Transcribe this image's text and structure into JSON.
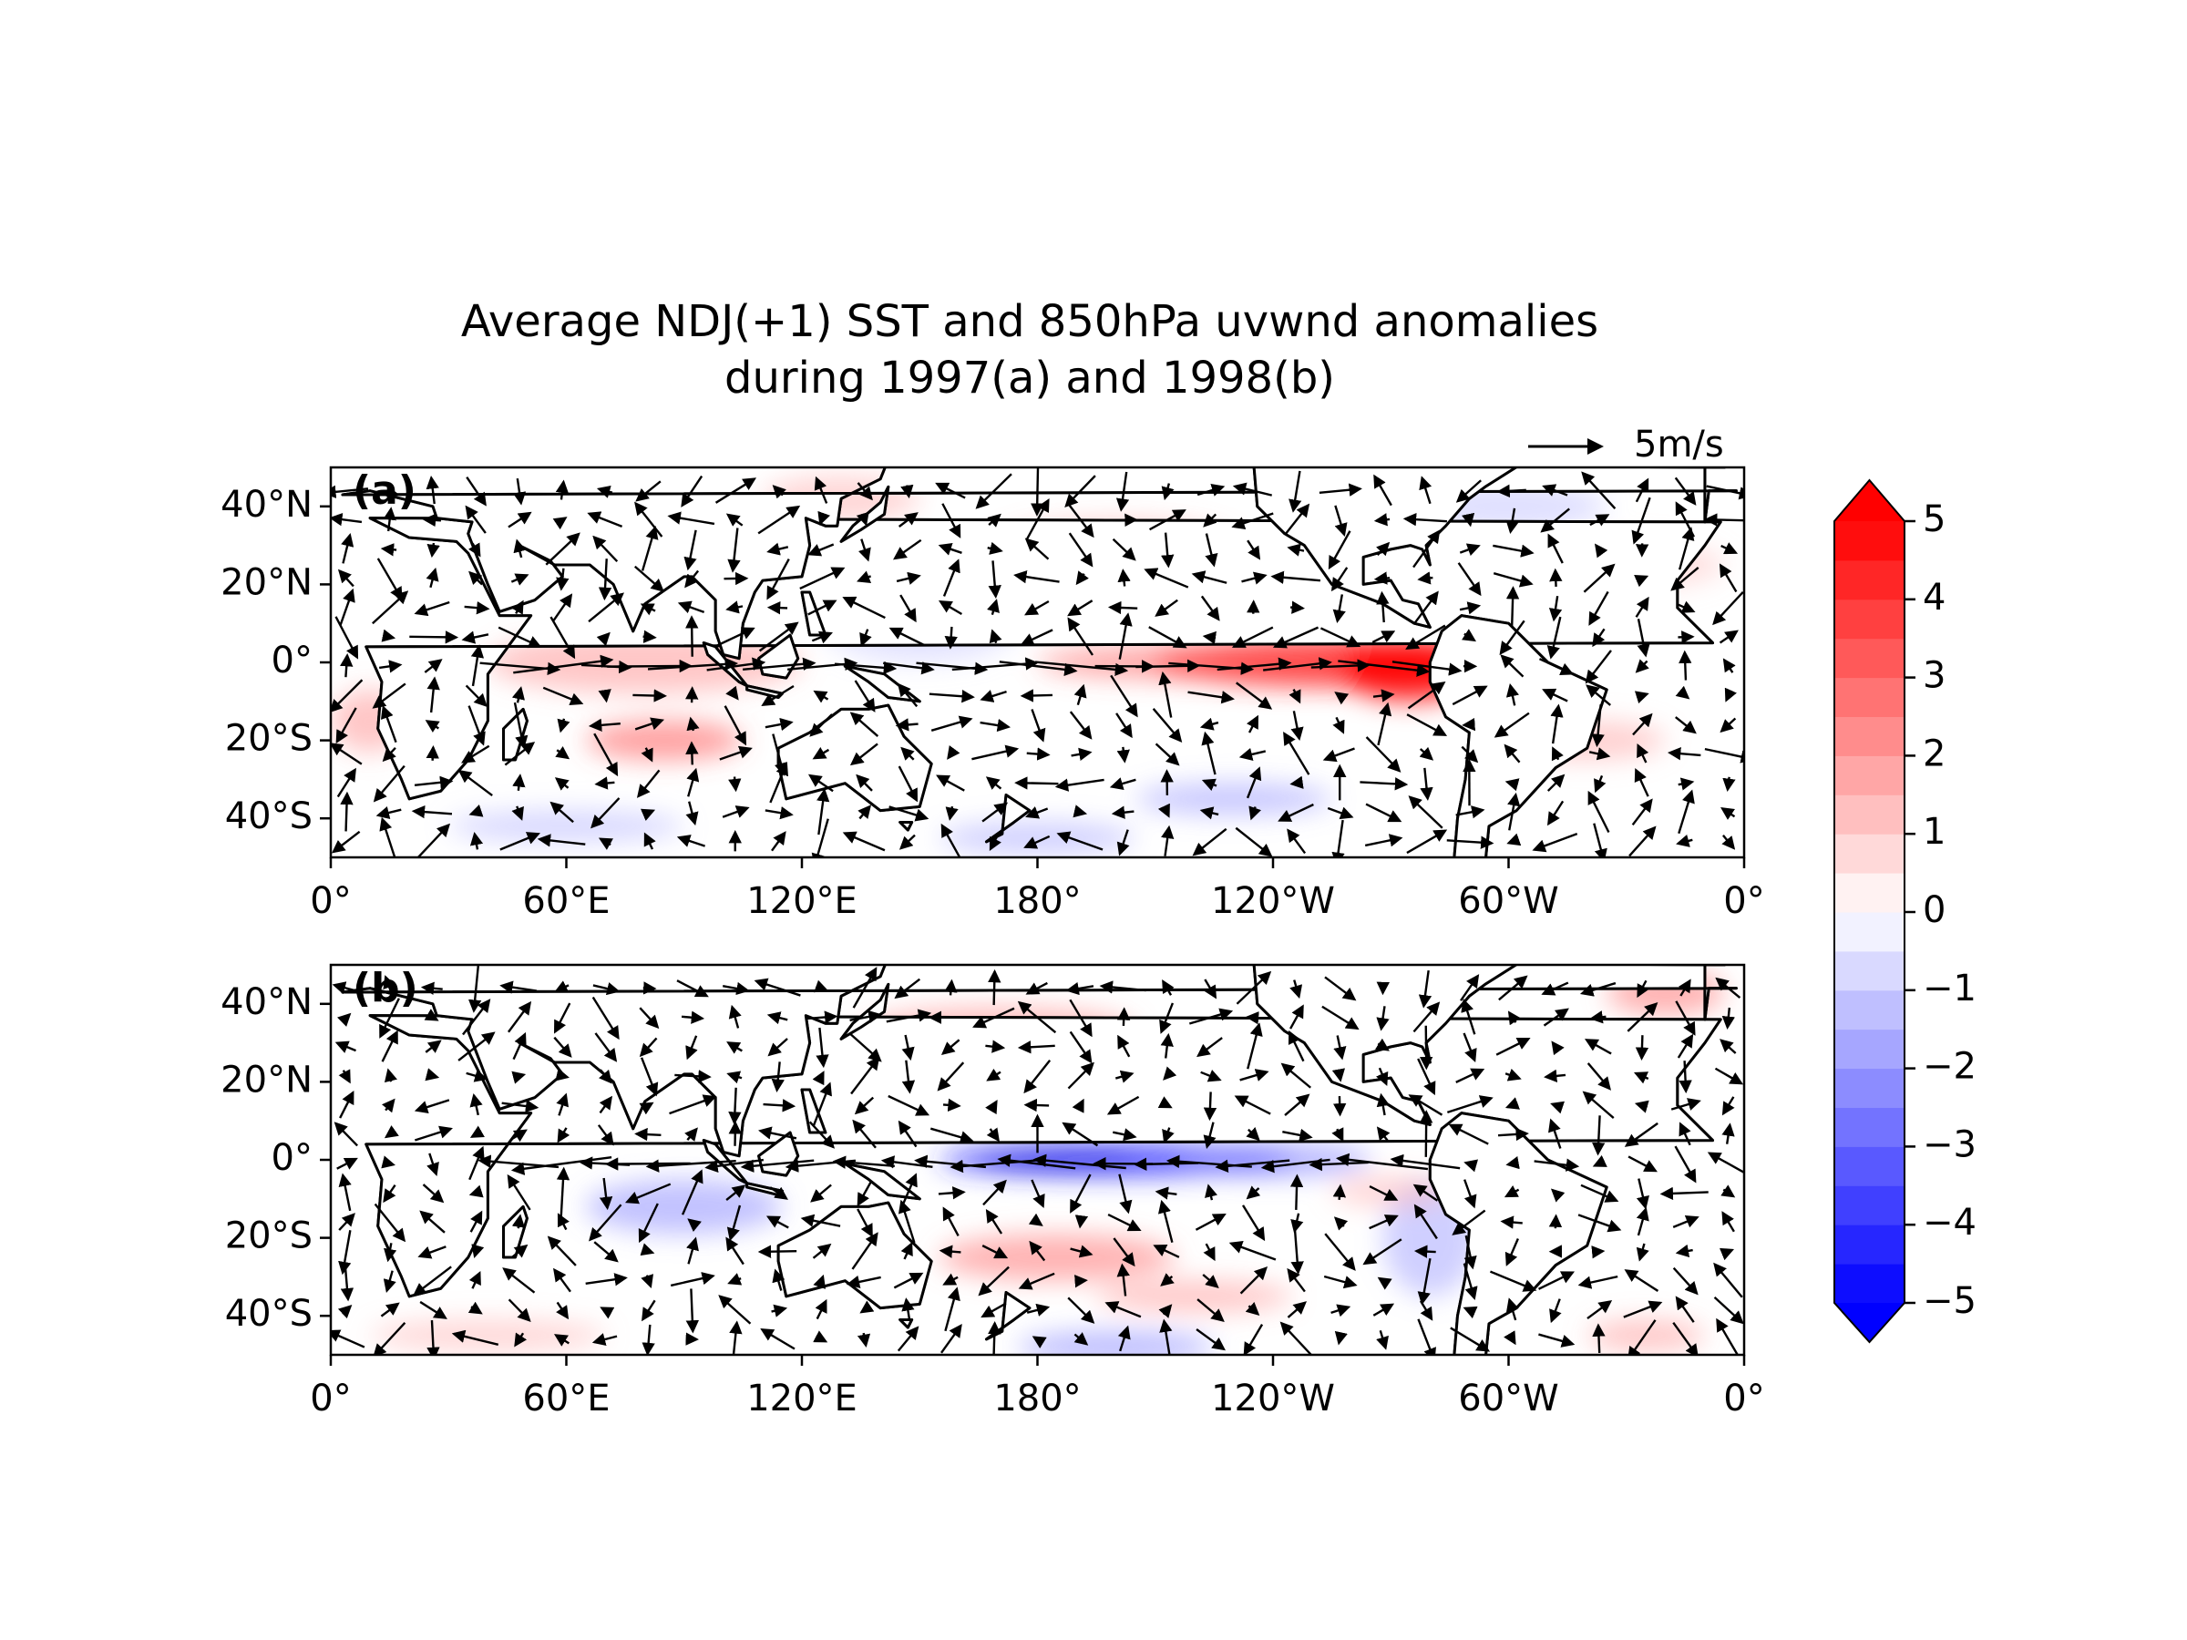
{
  "title_lines": [
    "Average NDJ(+1) SST and 850hPa uvwnd anomalies",
    "during 1997(a) and 1998(b)"
  ],
  "quiver_key": "5m/s",
  "panels": [
    {
      "label": "(a)"
    },
    {
      "label": "(b)"
    }
  ],
  "map_extent": {
    "lon": [
      0,
      360
    ],
    "lat": [
      -50,
      50
    ]
  },
  "lon_ticks": [
    {
      "value": 0,
      "label": "0°"
    },
    {
      "value": 60,
      "label": "60°E"
    },
    {
      "value": 120,
      "label": "120°E"
    },
    {
      "value": 180,
      "label": "180°"
    },
    {
      "value": 240,
      "label": "120°W"
    },
    {
      "value": 300,
      "label": "60°W"
    },
    {
      "value": 360,
      "label": "0°"
    }
  ],
  "lat_ticks": [
    {
      "value": 40,
      "label": "40°N"
    },
    {
      "value": 20,
      "label": "20°N"
    },
    {
      "value": 0,
      "label": "0°"
    },
    {
      "value": -20,
      "label": "20°S"
    },
    {
      "value": -40,
      "label": "40°S"
    }
  ],
  "colorbar": {
    "lim": [
      -5,
      5
    ],
    "ticks": [
      5,
      4,
      3,
      2,
      1,
      0,
      {
        "value": -1,
        "label": "−1"
      },
      {
        "value": -2,
        "label": "−2"
      },
      {
        "value": -3,
        "label": "−3"
      },
      {
        "value": -4,
        "label": "−4"
      },
      {
        "value": -5,
        "label": "−5"
      }
    ]
  }
}
